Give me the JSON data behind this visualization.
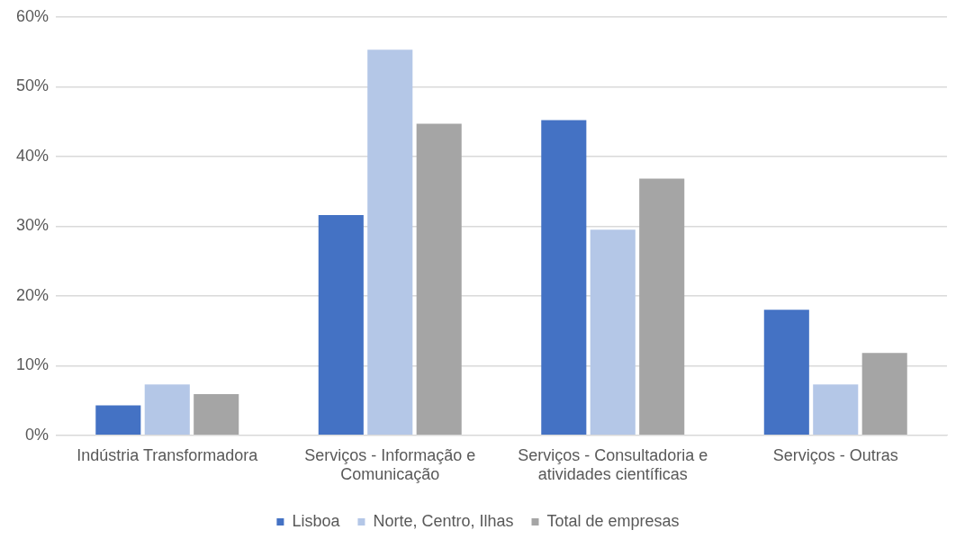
{
  "chart_data": {
    "type": "bar",
    "categories": [
      "Indústria Transformadora",
      "Serviços - Informação e Comunicação",
      "Serviços - Consultadoria e atividades científicas",
      "Serviços - Outras"
    ],
    "series": [
      {
        "name": "Lisboa",
        "color": "#4472c4",
        "values": [
          4.3,
          31.6,
          45.2,
          18.0
        ]
      },
      {
        "name": "Norte, Centro, Ilhas",
        "color": "#b4c7e7",
        "values": [
          7.3,
          55.3,
          29.5,
          7.3
        ]
      },
      {
        "name": "Total de empresas",
        "color": "#a5a5a5",
        "values": [
          5.9,
          44.7,
          36.8,
          11.8
        ]
      }
    ],
    "ylim": [
      0,
      60
    ],
    "yticks": [
      {
        "value": 0,
        "label": "0%"
      },
      {
        "value": 10,
        "label": "10%"
      },
      {
        "value": 20,
        "label": "20%"
      },
      {
        "value": 30,
        "label": "30%"
      },
      {
        "value": 40,
        "label": "40%"
      },
      {
        "value": 50,
        "label": "50%"
      },
      {
        "value": 60,
        "label": "60%"
      }
    ],
    "grid": "y",
    "legend": "bottom"
  }
}
